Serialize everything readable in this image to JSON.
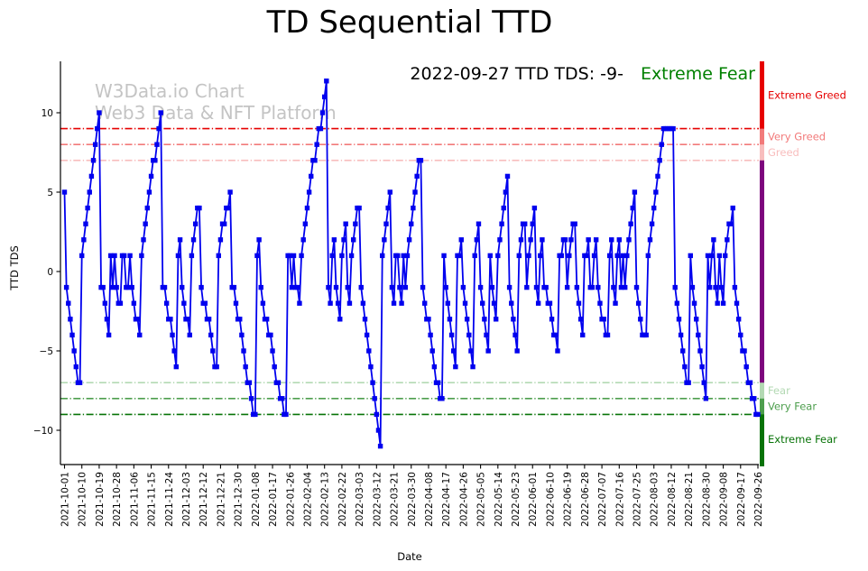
{
  "title": "TD Sequential TTD",
  "annotation": {
    "text": "2022-09-27 TTD TDS: -9-",
    "status": "Extreme Fear",
    "status_color": "#008000"
  },
  "watermark": {
    "line1": "W3Data.io Chart",
    "line2": "Web3 Data & NFT Platform"
  },
  "chart_data": {
    "type": "line",
    "title": "TD Sequential TTD",
    "xlabel": "Date",
    "ylabel": "TTD TDS",
    "legend": "none",
    "grid": false,
    "line_color": "#0000ee",
    "marker": "square",
    "start_date": "2021-10-01",
    "end_date": "2022-09-26",
    "ylim": [
      -12.2,
      13.2
    ],
    "y_ticks": [
      10,
      5,
      0,
      -5,
      -10
    ],
    "y_tick_labels": [
      "10",
      "5",
      "0",
      "−5",
      "−10"
    ],
    "x_tick_labels": [
      "2021-10-01",
      "2021-10-10",
      "2021-10-19",
      "2021-10-28",
      "2021-11-06",
      "2021-11-15",
      "2021-11-24",
      "2021-12-03",
      "2021-12-12",
      "2021-12-21",
      "2021-12-30",
      "2022-01-08",
      "2022-01-17",
      "2022-01-26",
      "2022-02-04",
      "2022-02-13",
      "2022-02-22",
      "2022-03-03",
      "2022-03-12",
      "2022-03-21",
      "2022-03-30",
      "2022-04-08",
      "2022-04-17",
      "2022-04-26",
      "2022-05-05",
      "2022-05-14",
      "2022-05-23",
      "2022-06-01",
      "2022-06-10",
      "2022-06-19",
      "2022-06-28",
      "2022-07-07",
      "2022-07-16",
      "2022-07-25",
      "2022-08-03",
      "2022-08-12",
      "2022-08-21",
      "2022-08-30",
      "2022-09-08",
      "2022-09-17",
      "2022-09-26"
    ],
    "x_tick_interval_days": 9,
    "reference_lines": [
      {
        "value": 9,
        "color": "#e60000"
      },
      {
        "value": 8,
        "color": "#f27a7a"
      },
      {
        "value": 7,
        "color": "#f8bdbd"
      },
      {
        "value": -7,
        "color": "#b3d9b3"
      },
      {
        "value": -8,
        "color": "#4d9e4d"
      },
      {
        "value": -9,
        "color": "#077307"
      }
    ],
    "zones": [
      {
        "label": "Extreme Greed",
        "color": "#e60000",
        "from": 9,
        "to": "top"
      },
      {
        "label": "Very Greed",
        "color": "#f27a7a",
        "from": 8,
        "to": 9
      },
      {
        "label": "Greed",
        "color": "#f8bdbd",
        "from": 7,
        "to": 8
      },
      {
        "label": "",
        "color": "#7d067d",
        "from": -7,
        "to": 7
      },
      {
        "label": "Fear",
        "color": "#b3d9b3",
        "from": -8,
        "to": -7
      },
      {
        "label": "Very Fear",
        "color": "#4d9e4d",
        "from": -9,
        "to": -8
      },
      {
        "label": "Extreme Fear",
        "color": "#077307",
        "from": "bottom",
        "to": -9
      }
    ],
    "values": [
      5,
      -1,
      -2,
      -3,
      -4,
      -5,
      -6,
      -7,
      -7,
      1,
      2,
      3,
      4,
      5,
      6,
      7,
      8,
      9,
      10,
      -1,
      -1,
      -2,
      -3,
      -4,
      1,
      -1,
      1,
      -1,
      -2,
      -2,
      1,
      1,
      -1,
      -1,
      1,
      -1,
      -2,
      -3,
      -3,
      -4,
      1,
      2,
      3,
      4,
      5,
      6,
      7,
      7,
      8,
      9,
      10,
      -1,
      -1,
      -2,
      -3,
      -3,
      -4,
      -5,
      -6,
      1,
      2,
      -1,
      -2,
      -3,
      -3,
      -4,
      1,
      2,
      3,
      4,
      4,
      -1,
      -2,
      -2,
      -3,
      -3,
      -4,
      -5,
      -6,
      -6,
      1,
      2,
      3,
      3,
      4,
      4,
      5,
      -1,
      -1,
      -2,
      -3,
      -3,
      -4,
      -5,
      -6,
      -7,
      -7,
      -8,
      -9,
      -9,
      1,
      2,
      -1,
      -2,
      -3,
      -3,
      -4,
      -4,
      -5,
      -6,
      -7,
      -7,
      -8,
      -8,
      -9,
      -9,
      1,
      1,
      -1,
      1,
      -1,
      -1,
      -2,
      1,
      2,
      3,
      4,
      5,
      6,
      7,
      7,
      8,
      9,
      9,
      10,
      11,
      12,
      -1,
      -2,
      1,
      2,
      -1,
      -2,
      -3,
      1,
      2,
      3,
      -1,
      -2,
      1,
      2,
      3,
      4,
      4,
      -1,
      -2,
      -3,
      -4,
      -5,
      -6,
      -7,
      -8,
      -9,
      -10,
      -11,
      1,
      2,
      3,
      4,
      5,
      -1,
      -2,
      1,
      1,
      -1,
      -2,
      1,
      -1,
      1,
      2,
      3,
      4,
      5,
      6,
      7,
      7,
      -1,
      -2,
      -3,
      -3,
      -4,
      -5,
      -6,
      -7,
      -7,
      -8,
      -8,
      1,
      -1,
      -2,
      -3,
      -4,
      -5,
      -6,
      1,
      1,
      2,
      -1,
      -2,
      -3,
      -4,
      -5,
      -6,
      1,
      2,
      3,
      -1,
      -2,
      -3,
      -4,
      -5,
      1,
      -1,
      -2,
      -3,
      1,
      2,
      3,
      4,
      5,
      6,
      -1,
      -2,
      -3,
      -4,
      -5,
      1,
      2,
      3,
      3,
      -1,
      1,
      2,
      3,
      4,
      -1,
      -2,
      1,
      2,
      -1,
      -1,
      -2,
      -2,
      -3,
      -4,
      -4,
      -5,
      1,
      1,
      2,
      2,
      -1,
      1,
      2,
      3,
      3,
      -1,
      -2,
      -3,
      -4,
      1,
      1,
      2,
      -1,
      -1,
      1,
      2,
      -1,
      -2,
      -3,
      -3,
      -4,
      -4,
      1,
      2,
      -1,
      -2,
      1,
      2,
      -1,
      1,
      -1,
      1,
      2,
      3,
      4,
      5,
      -1,
      -2,
      -3,
      -4,
      -4,
      -4,
      1,
      2,
      3,
      4,
      5,
      6,
      7,
      8,
      9,
      9,
      9,
      9,
      9,
      9,
      -1,
      -2,
      -3,
      -4,
      -5,
      -6,
      -7,
      -7,
      1,
      -1,
      -2,
      -3,
      -4,
      -5,
      -6,
      -7,
      -8,
      1,
      -1,
      1,
      2,
      -1,
      -2,
      1,
      -1,
      -2,
      1,
      2,
      3,
      3,
      4,
      -1,
      -2,
      -3,
      -4,
      -5,
      -5,
      -6,
      -7,
      -7,
      -8,
      -8,
      -9,
      -9
    ]
  }
}
